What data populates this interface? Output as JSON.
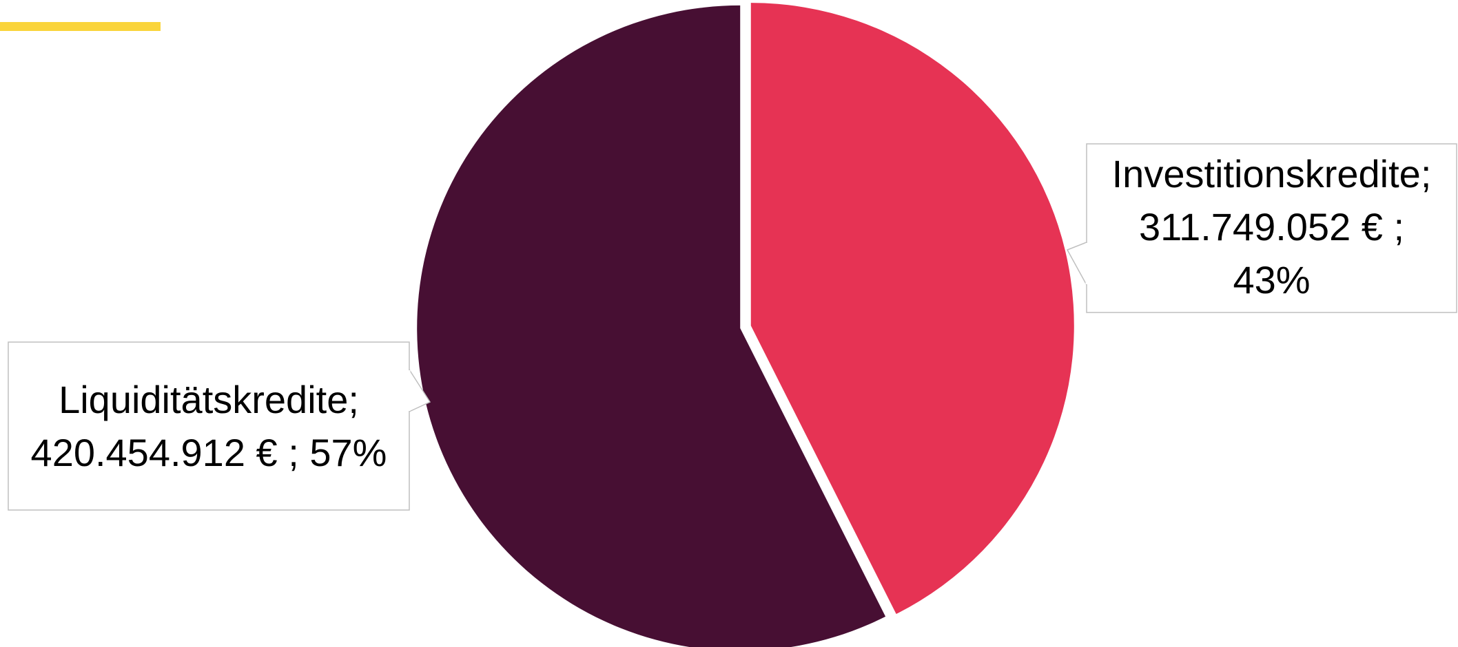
{
  "colors": {
    "accent_bar": "#FAD43B",
    "callout_border": "#BFBFBF",
    "separator": "#FFFFFF"
  },
  "chart_data": {
    "type": "pie",
    "title": "",
    "currency_unit": "€",
    "slices": [
      {
        "name": "Investitionskredite",
        "value": 311749052,
        "percent": 43,
        "color": "#E63354",
        "label_lines": [
          "Investitionskredite;",
          "311.749.052 € ;",
          "43%"
        ]
      },
      {
        "name": "Liquiditätskredite",
        "value": 420454912,
        "percent": 57,
        "color": "#470F33",
        "label_lines": [
          "Liquiditätskredite;",
          "420.454.912 € ; 57%"
        ]
      }
    ],
    "legend": "none",
    "start_angle": "12 o'clock, clockwise"
  }
}
